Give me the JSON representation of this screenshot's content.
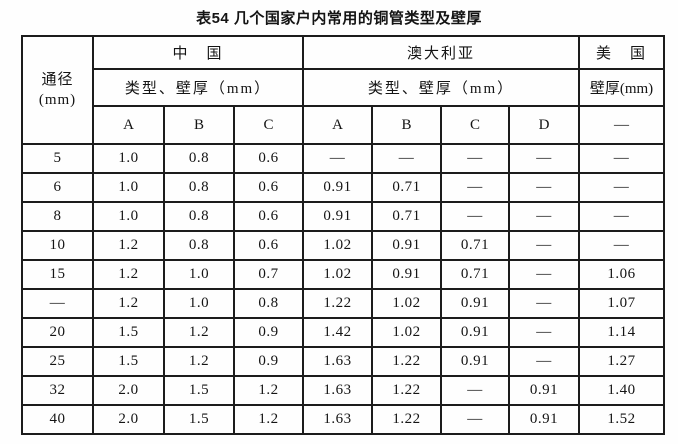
{
  "page": {
    "title": "表54 几个国家户内常用的铜管类型及壁厚"
  },
  "table": {
    "header": {
      "diameter_line1": "通径",
      "diameter_line2": "(mm)",
      "china": "中　国",
      "australia": "澳大利亚",
      "usa": "美　国",
      "china_sub": "类型、壁厚（mm）",
      "australia_sub": "类型、壁厚（mm）",
      "usa_sub": "壁厚(mm)",
      "type_cols": [
        "A",
        "B",
        "C",
        "A",
        "B",
        "C",
        "D",
        "—"
      ]
    },
    "rows": [
      [
        "5",
        "1.0",
        "0.8",
        "0.6",
        "—",
        "—",
        "—",
        "—",
        "—"
      ],
      [
        "6",
        "1.0",
        "0.8",
        "0.6",
        "0.91",
        "0.71",
        "—",
        "—",
        "—"
      ],
      [
        "8",
        "1.0",
        "0.8",
        "0.6",
        "0.91",
        "0.71",
        "—",
        "—",
        "—"
      ],
      [
        "10",
        "1.2",
        "0.8",
        "0.6",
        "1.02",
        "0.91",
        "0.71",
        "—",
        "—"
      ],
      [
        "15",
        "1.2",
        "1.0",
        "0.7",
        "1.02",
        "0.91",
        "0.71",
        "—",
        "1.06"
      ],
      [
        "—",
        "1.2",
        "1.0",
        "0.8",
        "1.22",
        "1.02",
        "0.91",
        "—",
        "1.07"
      ],
      [
        "20",
        "1.5",
        "1.2",
        "0.9",
        "1.42",
        "1.02",
        "0.91",
        "—",
        "1.14"
      ],
      [
        "25",
        "1.5",
        "1.2",
        "0.9",
        "1.63",
        "1.22",
        "0.91",
        "—",
        "1.27"
      ],
      [
        "32",
        "2.0",
        "1.5",
        "1.2",
        "1.63",
        "1.22",
        "—",
        "0.91",
        "1.40"
      ],
      [
        "40",
        "2.0",
        "1.5",
        "1.2",
        "1.63",
        "1.22",
        "—",
        "0.91",
        "1.52"
      ]
    ]
  }
}
